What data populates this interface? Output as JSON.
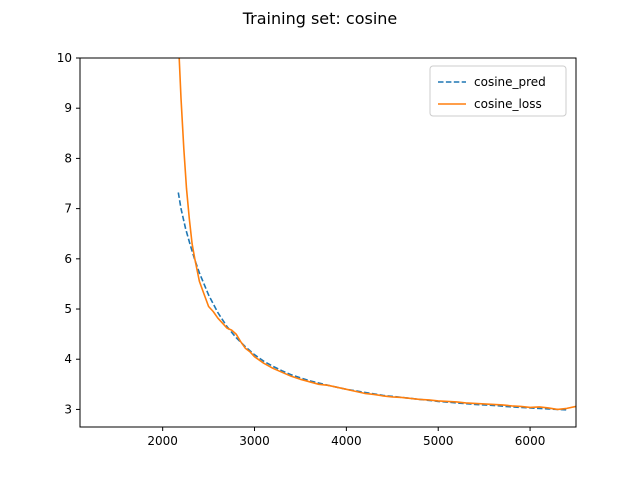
{
  "chart_data": {
    "type": "line",
    "title": "Training set: cosine",
    "xlabel": "",
    "ylabel": "",
    "xlim": [
      1100,
      6500
    ],
    "ylim": [
      2.65,
      10.0
    ],
    "xticks": [
      2000,
      3000,
      4000,
      5000,
      6000
    ],
    "yticks": [
      3,
      4,
      5,
      6,
      7,
      8,
      9,
      10
    ],
    "legend_position": "top-right",
    "grid": false,
    "series": [
      {
        "name": "cosine_pred",
        "style": "dashed",
        "color": "#1f77b4",
        "x": [
          2170,
          2200,
          2250,
          2300,
          2350,
          2400,
          2500,
          2600,
          2700,
          2800,
          2900,
          3000,
          3100,
          3200,
          3300,
          3400,
          3500,
          3600,
          3800,
          4000,
          4200,
          4400,
          4600,
          4800,
          5000,
          5200,
          5400,
          5600,
          5800,
          6000,
          6200,
          6400
        ],
        "y": [
          7.32,
          7.0,
          6.6,
          6.28,
          5.98,
          5.72,
          5.28,
          4.93,
          4.65,
          4.43,
          4.25,
          4.09,
          3.96,
          3.86,
          3.77,
          3.69,
          3.63,
          3.57,
          3.48,
          3.4,
          3.34,
          3.28,
          3.24,
          3.2,
          3.16,
          3.13,
          3.1,
          3.08,
          3.05,
          3.03,
          3.01,
          2.99
        ]
      },
      {
        "name": "cosine_loss",
        "style": "solid",
        "color": "#ff7f0e",
        "x": [
          2180,
          2200,
          2230,
          2260,
          2290,
          2320,
          2350,
          2400,
          2450,
          2500,
          2550,
          2600,
          2650,
          2700,
          2750,
          2800,
          2850,
          2900,
          2950,
          3000,
          3100,
          3200,
          3300,
          3400,
          3500,
          3600,
          3700,
          3800,
          3900,
          4000,
          4100,
          4200,
          4300,
          4400,
          4500,
          4600,
          4700,
          4800,
          4900,
          5000,
          5100,
          5200,
          5300,
          5400,
          5500,
          5600,
          5700,
          5800,
          5900,
          6000,
          6100,
          6200,
          6300,
          6400,
          6500
        ],
        "y": [
          10.0,
          9.2,
          8.2,
          7.4,
          6.8,
          6.3,
          6.0,
          5.55,
          5.3,
          5.05,
          4.95,
          4.82,
          4.72,
          4.62,
          4.58,
          4.5,
          4.35,
          4.22,
          4.15,
          4.05,
          3.92,
          3.82,
          3.74,
          3.66,
          3.6,
          3.55,
          3.5,
          3.48,
          3.44,
          3.4,
          3.36,
          3.32,
          3.3,
          3.27,
          3.25,
          3.24,
          3.22,
          3.2,
          3.19,
          3.17,
          3.16,
          3.15,
          3.13,
          3.12,
          3.11,
          3.1,
          3.09,
          3.07,
          3.06,
          3.04,
          3.05,
          3.03,
          3.0,
          3.02,
          3.06
        ]
      }
    ]
  }
}
